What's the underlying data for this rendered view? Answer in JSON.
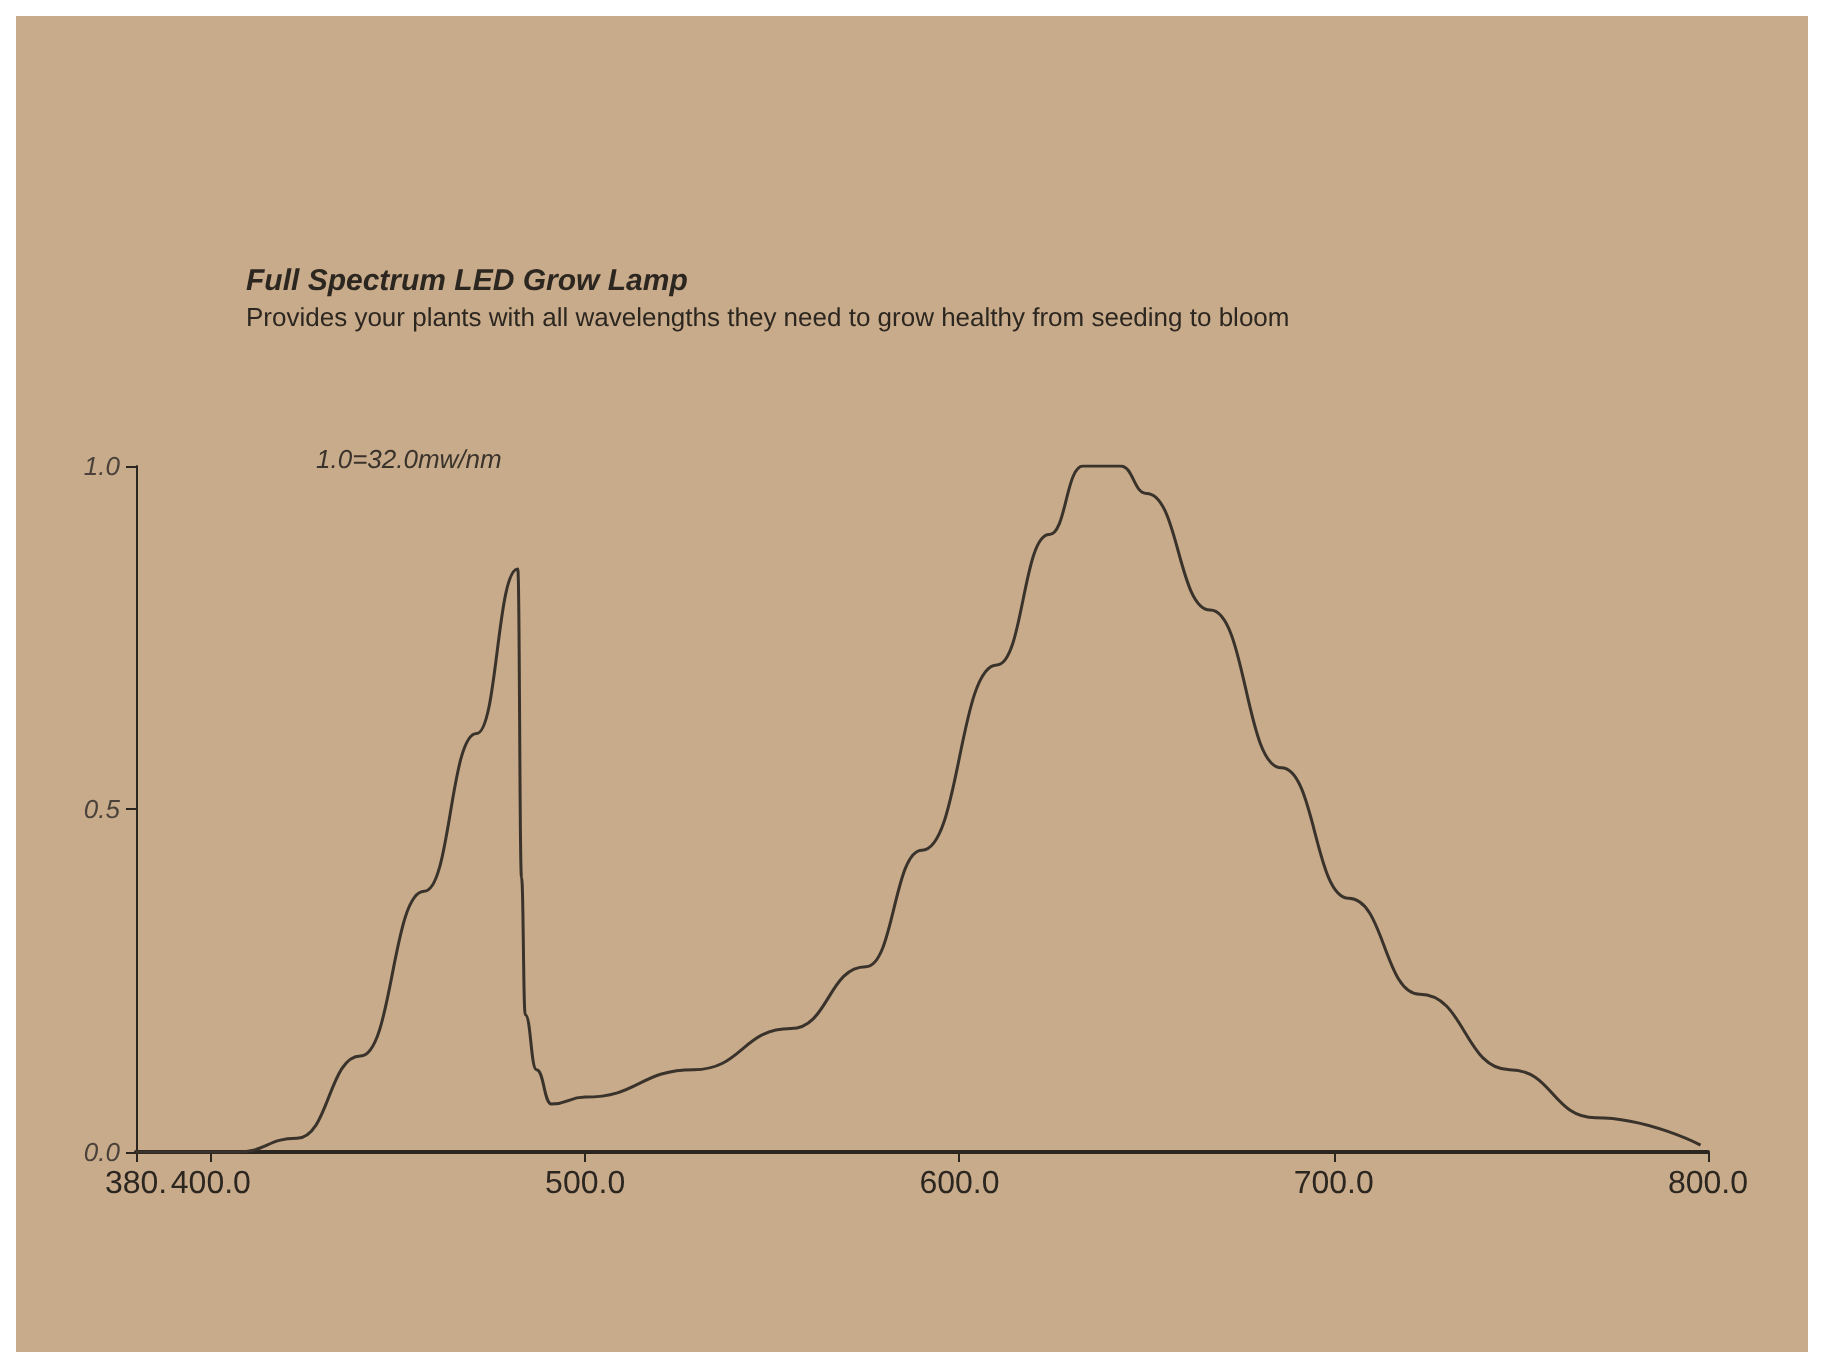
{
  "chart_data": {
    "type": "line",
    "title": "Full Spectrum LED Grow Lamp",
    "subtitle": "Provides your plants with all wavelengths they need to grow healthy from seeding to bloom",
    "annotations": [
      "1.0=32.0mw/nm"
    ],
    "series": [
      {
        "color": "#3a332c",
        "x": [
          380,
          400,
          407,
          423,
          440,
          457,
          471,
          482,
          483,
          484,
          487,
          491,
          500,
          529,
          555,
          575,
          590,
          610,
          624,
          633,
          643,
          650,
          667,
          686,
          704,
          723,
          747,
          770,
          798
        ],
        "values": [
          0,
          0,
          0,
          0.02,
          0.14,
          0.38,
          0.61,
          0.85,
          0.4,
          0.2,
          0.12,
          0.07,
          0.08,
          0.12,
          0.18,
          0.27,
          0.44,
          0.71,
          0.9,
          1.0,
          1.0,
          0.96,
          0.79,
          0.56,
          0.37,
          0.23,
          0.12,
          0.05,
          0.01
        ]
      }
    ],
    "xlim": [
      380,
      800
    ],
    "xticks": [
      {
        "value": 380,
        "label": "380."
      },
      {
        "value": 400,
        "label": "400.0"
      },
      {
        "value": 500,
        "label": "500.0"
      },
      {
        "value": 600,
        "label": "600.0"
      },
      {
        "value": 700,
        "label": "700.0"
      },
      {
        "value": 800,
        "label": "800.0"
      }
    ],
    "ylim": [
      0,
      1
    ],
    "yticks": [
      {
        "value": 0,
        "label": "0.0"
      },
      {
        "value": 0.5,
        "label": "0.5"
      },
      {
        "value": 1,
        "label": "1.0"
      }
    ],
    "grid": false,
    "marker": "none",
    "line_style": "solid"
  }
}
